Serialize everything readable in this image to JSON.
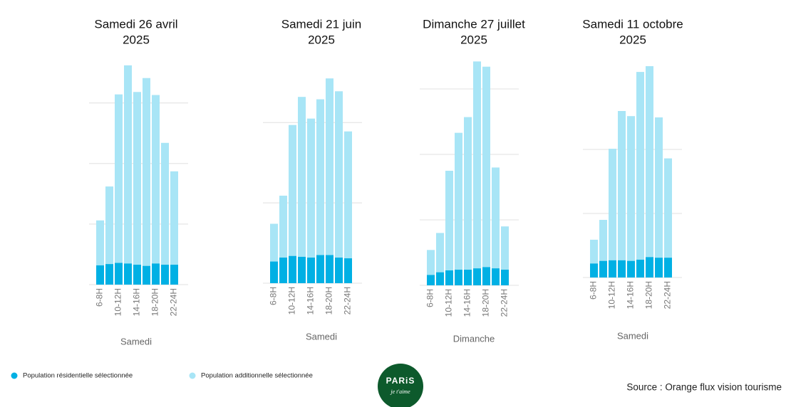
{
  "chart_data": [
    {
      "type": "bar",
      "stacked": true,
      "title": [
        "Samedi 26 avril",
        "2025"
      ],
      "xlabel": "Samedi",
      "categories": [
        "6-8H",
        null,
        "10-12H",
        null,
        "14-16H",
        null,
        "18-20H",
        null,
        "22-24H"
      ],
      "series": [
        {
          "name": "Population résidentielle sélectionnée",
          "color": "#00b0e4",
          "values": [
            32,
            34,
            36,
            35,
            33,
            31,
            35,
            33,
            33
          ]
        },
        {
          "name": "Population additionnelle sélectionnée",
          "color": "#a8e5f6",
          "values": [
            74,
            128,
            278,
            327,
            285,
            310,
            278,
            201,
            154
          ]
        }
      ],
      "ylim": [
        0,
        370
      ],
      "yticks": [
        0,
        100,
        200,
        300
      ],
      "grid": true
    },
    {
      "type": "bar",
      "stacked": true,
      "title": [
        "Samedi 21 juin",
        "2025"
      ],
      "xlabel": "Samedi",
      "categories": [
        "6-8H",
        null,
        "10-12H",
        null,
        "14-16H",
        null,
        "18-20H",
        null,
        "22-24H"
      ],
      "series": [
        {
          "name": "Population résidentielle sélectionnée",
          "color": "#00b0e4",
          "values": [
            27,
            32,
            34,
            33,
            32,
            35,
            35,
            32,
            31
          ]
        },
        {
          "name": "Population additionnelle sélectionnée",
          "color": "#a8e5f6",
          "values": [
            47,
            77,
            163,
            199,
            173,
            194,
            220,
            207,
            158
          ]
        }
      ],
      "ylim": [
        0,
        280
      ],
      "yticks": [
        0,
        100,
        200
      ],
      "grid": true
    },
    {
      "type": "bar",
      "stacked": true,
      "title": [
        "Dimanche 27 juillet",
        "2025"
      ],
      "xlabel": "Dimanche",
      "categories": [
        "6-8H",
        null,
        "10-12H",
        null,
        "14-16H",
        null,
        "18-20H",
        null,
        "22-24H"
      ],
      "series": [
        {
          "name": "Population résidentielle sélectionnée",
          "color": "#00b0e4",
          "values": [
            16,
            20,
            23,
            24,
            24,
            26,
            28,
            26,
            24
          ]
        },
        {
          "name": "Population additionnelle sélectionnée",
          "color": "#a8e5f6",
          "values": [
            38,
            60,
            152,
            209,
            233,
            316,
            306,
            154,
            66
          ]
        }
      ],
      "ylim": [
        0,
        350
      ],
      "yticks": [
        0,
        100,
        200,
        300
      ],
      "grid": true
    },
    {
      "type": "bar",
      "stacked": true,
      "title": [
        "Samedi 11 octobre",
        "2025"
      ],
      "xlabel": "Samedi",
      "categories": [
        "6-8H",
        null,
        "10-12H",
        null,
        "14-16H",
        null,
        "18-20H",
        null,
        "22-24H"
      ],
      "series": [
        {
          "name": "Population résidentielle sélectionnée",
          "color": "#00b0e4",
          "values": [
            22,
            26,
            27,
            27,
            26,
            28,
            32,
            31,
            31
          ]
        },
        {
          "name": "Population additionnelle sélectionnée",
          "color": "#a8e5f6",
          "values": [
            37,
            64,
            174,
            233,
            226,
            293,
            298,
            219,
            155
          ]
        }
      ],
      "ylim": [
        0,
        340
      ],
      "yticks": [
        0,
        100,
        200
      ],
      "grid": true
    }
  ],
  "source": "Source : Orange flux vision tourisme",
  "logo": {
    "name": "PARiS",
    "tagline": "je t'aime"
  }
}
